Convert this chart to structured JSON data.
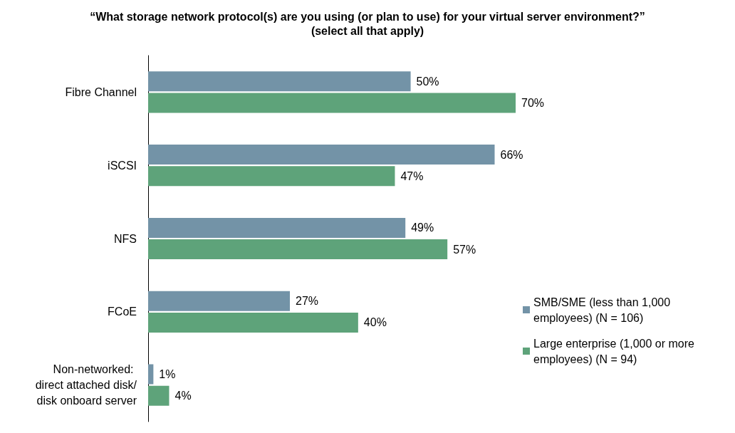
{
  "chart_data": {
    "type": "bar",
    "orientation": "horizontal",
    "title": "“What storage network protocol(s) are you using (or plan to use) for your virtual server environment?”",
    "subtitle": "(select all that apply)",
    "categories": [
      "Fibre Channel",
      "iSCSI",
      "NFS",
      "FCoE",
      "Non-networked: direct attached disk/disk onboard server"
    ],
    "series": [
      {
        "name": "SMB/SME (less than 1,000 employees) (N = 106)",
        "color": "#7393a7",
        "values": [
          50,
          66,
          49,
          27,
          1
        ],
        "value_labels": [
          "50%",
          "66%",
          "49%",
          "27%",
          "1%"
        ]
      },
      {
        "name": "Large enterprise (1,000 or more employees) (N = 94)",
        "color": "#5ea37a",
        "values": [
          70,
          47,
          57,
          40,
          4
        ],
        "value_labels": [
          "70%",
          "47%",
          "57%",
          "40%",
          "4%"
        ]
      }
    ],
    "legend": "right",
    "tick_labels": "y"
  }
}
